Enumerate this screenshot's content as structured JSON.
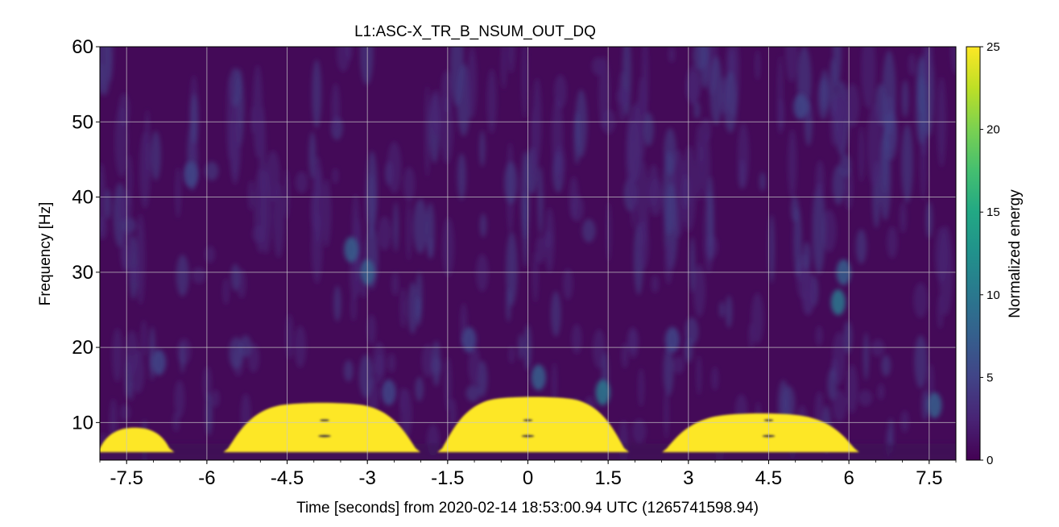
{
  "chart_data": {
    "type": "heatmap",
    "title": "L1:ASC-X_TR_B_NSUM_OUT_DQ",
    "xlabel": "Time [seconds] from 2020-02-14 18:53:00.94 UTC (1265741598.94)",
    "ylabel": "Frequency [Hz]",
    "colorbar_label": "Normalized energy",
    "xlim": [
      -8,
      8
    ],
    "ylim": [
      5,
      60
    ],
    "clim": [
      0,
      25
    ],
    "xticks": [
      -7.5,
      -6,
      -4.5,
      -3,
      -1.5,
      0,
      1.5,
      3,
      4.5,
      6,
      7.5
    ],
    "xtick_labels": [
      "-7.5",
      "-6",
      "-4.5",
      "-3",
      "-1.5",
      "0",
      "1.5",
      "3",
      "4.5",
      "6",
      "7.5"
    ],
    "yticks": [
      10,
      20,
      30,
      40,
      50,
      60
    ],
    "ytick_labels": [
      "10",
      "20",
      "30",
      "40",
      "50",
      "60"
    ],
    "cbar_ticks": [
      0,
      5,
      10,
      15,
      20,
      25
    ],
    "cbar_tick_labels": [
      "0",
      "5",
      "10",
      "15",
      "20",
      "25"
    ],
    "colormap": "viridis",
    "grid": true,
    "saturated_regions": [
      {
        "t_start": -8.0,
        "t_end": -6.7,
        "f_low": 6.6,
        "f_high": 9.4
      },
      {
        "t_start": -5.6,
        "t_end": -2.1,
        "f_low": 6.6,
        "f_high": 12.7
      },
      {
        "t_start": -1.6,
        "t_end": 1.8,
        "f_low": 6.6,
        "f_high": 13.5
      },
      {
        "t_start": 2.6,
        "t_end": 6.1,
        "f_low": 6.6,
        "f_high": 11.3
      }
    ],
    "features": [
      {
        "t": -3.0,
        "f": 30,
        "energy": 8
      },
      {
        "t": -3.3,
        "f": 33,
        "energy": 7
      },
      {
        "t": 5.8,
        "f": 26,
        "energy": 11
      },
      {
        "t": 5.9,
        "f": 30,
        "energy": 8
      },
      {
        "t": -6.3,
        "f": 43,
        "energy": 6
      },
      {
        "t": 5.1,
        "f": 52,
        "energy": 5
      },
      {
        "t": 1.4,
        "f": 14,
        "energy": 9
      },
      {
        "t": 0.2,
        "f": 16,
        "energy": 7
      },
      {
        "t": -1.1,
        "f": 21,
        "energy": 6
      },
      {
        "t": -6.9,
        "f": 18,
        "energy": 6
      },
      {
        "t": 7.6,
        "f": 12.3,
        "energy": 8
      },
      {
        "t": 2.7,
        "f": 21,
        "energy": 6
      },
      {
        "t": -2.6,
        "f": 14,
        "energy": 6
      }
    ],
    "colors": {
      "background": "#440a58",
      "saturation": "#fde725",
      "grid": "#c8c8c8"
    }
  }
}
